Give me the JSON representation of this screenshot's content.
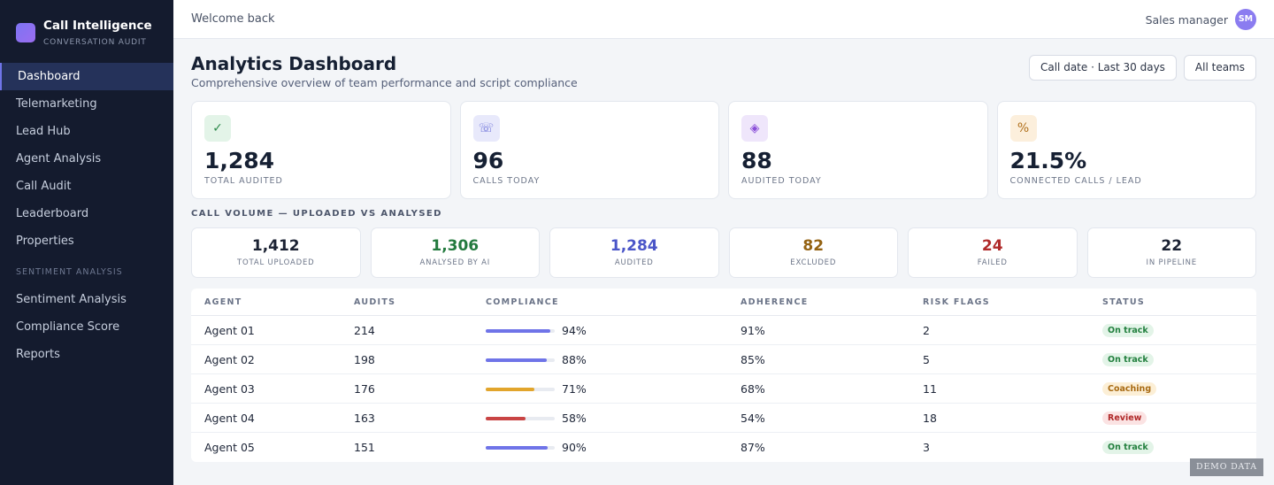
{
  "brand": {
    "title": "Call Intelligence",
    "subtitle": "CONVERSATION AUDIT"
  },
  "sidebar": {
    "items": [
      {
        "label": "Dashboard",
        "active": true
      },
      {
        "label": "Telemarketing"
      },
      {
        "label": "Lead Hub"
      },
      {
        "label": "Agent Analysis"
      },
      {
        "label": "Call Audit"
      },
      {
        "label": "Leaderboard"
      },
      {
        "label": "Properties"
      }
    ],
    "section_title": "SENTIMENT ANALYSIS",
    "section_items": [
      {
        "label": "Sentiment Analysis"
      },
      {
        "label": "Compliance Score"
      },
      {
        "label": "Reports"
      }
    ]
  },
  "topbar": {
    "welcome": "Welcome back",
    "role": "Sales manager",
    "avatar_initials": "SM"
  },
  "header": {
    "title": "Analytics Dashboard",
    "subtitle": "Comprehensive overview of team performance and script compliance",
    "filters": [
      "Call date · Last 30 days",
      "All teams"
    ]
  },
  "kpis": [
    {
      "icon": "check-icon",
      "glyph": "✓",
      "value": "1,284",
      "label": "TOTAL AUDITED",
      "icon_bg": "#e3f4e8",
      "icon_color": "#2e8a4c"
    },
    {
      "icon": "phone-icon",
      "glyph": "☏",
      "value": "96",
      "label": "CALLS TODAY",
      "icon_bg": "#e8e9fb",
      "icon_color": "#6a6fd8"
    },
    {
      "icon": "diamond-icon",
      "glyph": "◈",
      "value": "88",
      "label": "AUDITED TODAY",
      "icon_bg": "#efe6fb",
      "icon_color": "#8a4fd8"
    },
    {
      "icon": "percent-icon",
      "glyph": "%",
      "value": "21.5%",
      "label": "CONNECTED CALLS / LEAD",
      "icon_bg": "#fcefdc",
      "icon_color": "#b0701c"
    }
  ],
  "volume": {
    "title": "CALL VOLUME — UPLOADED VS ANALYSED",
    "items": [
      {
        "value": "1,412",
        "label": "TOTAL UPLOADED",
        "color": "#1b2233"
      },
      {
        "value": "1,306",
        "label": "ANALYSED BY AI",
        "color": "#237a3e"
      },
      {
        "value": "1,284",
        "label": "AUDITED",
        "color": "#4a55c8"
      },
      {
        "value": "82",
        "label": "EXCLUDED",
        "color": "#946212"
      },
      {
        "value": "24",
        "label": "FAILED",
        "color": "#b02a2a"
      },
      {
        "value": "22",
        "label": "IN PIPELINE",
        "color": "#1b2233"
      }
    ]
  },
  "table": {
    "headers": [
      "AGENT",
      "AUDITS",
      "COMPLIANCE",
      "ADHERENCE",
      "RISK FLAGS",
      "STATUS"
    ],
    "rows": [
      {
        "agent": "Agent 01",
        "audits": "214",
        "compliance": "94%",
        "compliance_value": 94,
        "bar_color": "#6f74e8",
        "adherence": "91%",
        "risk": "2",
        "status": "On track",
        "status_bg": "#e3f4e8",
        "status_color": "#23803f"
      },
      {
        "agent": "Agent 02",
        "audits": "198",
        "compliance": "88%",
        "compliance_value": 88,
        "bar_color": "#6f74e8",
        "adherence": "85%",
        "risk": "5",
        "status": "On track",
        "status_bg": "#e3f4e8",
        "status_color": "#23803f"
      },
      {
        "agent": "Agent 03",
        "audits": "176",
        "compliance": "71%",
        "compliance_value": 71,
        "bar_color": "#e2a52c",
        "adherence": "68%",
        "risk": "11",
        "status": "Coaching",
        "status_bg": "#fcefd6",
        "status_color": "#a86a12"
      },
      {
        "agent": "Agent 04",
        "audits": "163",
        "compliance": "58%",
        "compliance_value": 58,
        "bar_color": "#c94444",
        "adherence": "54%",
        "risk": "18",
        "status": "Review",
        "status_bg": "#fbe3e3",
        "status_color": "#b02a2a"
      },
      {
        "agent": "Agent 05",
        "audits": "151",
        "compliance": "90%",
        "compliance_value": 90,
        "bar_color": "#6f74e8",
        "adherence": "87%",
        "risk": "3",
        "status": "On track",
        "status_bg": "#e3f4e8",
        "status_color": "#23803f"
      }
    ]
  },
  "watermark": "DEMO DATA"
}
